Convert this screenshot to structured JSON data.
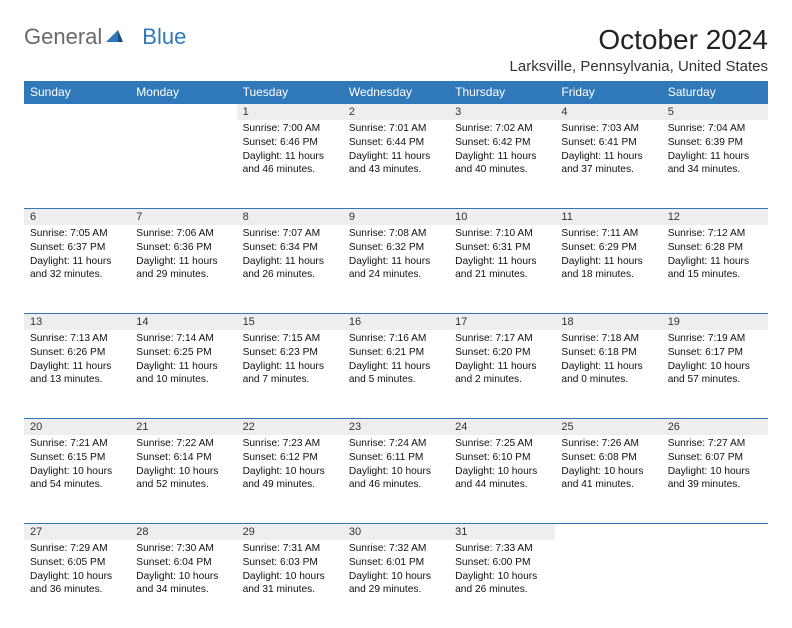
{
  "logo": {
    "general": "General",
    "blue": "Blue"
  },
  "title": "October 2024",
  "location": "Larksville, Pennsylvania, United States",
  "colors": {
    "header_bg": "#2f78b9",
    "header_fg": "#ffffff",
    "daynum_bg": "#eeeeee",
    "rule": "#2f78b9",
    "page_bg": "#ffffff",
    "text": "#111111"
  },
  "font": {
    "family": "Arial",
    "title_size_pt": 21,
    "location_size_pt": 11,
    "header_size_pt": 9,
    "body_size_pt": 7.5
  },
  "days_of_week": [
    "Sunday",
    "Monday",
    "Tuesday",
    "Wednesday",
    "Thursday",
    "Friday",
    "Saturday"
  ],
  "weeks": [
    [
      null,
      null,
      {
        "n": "1",
        "sr": "7:00 AM",
        "ss": "6:46 PM",
        "dh": "11",
        "dm": "46"
      },
      {
        "n": "2",
        "sr": "7:01 AM",
        "ss": "6:44 PM",
        "dh": "11",
        "dm": "43"
      },
      {
        "n": "3",
        "sr": "7:02 AM",
        "ss": "6:42 PM",
        "dh": "11",
        "dm": "40"
      },
      {
        "n": "4",
        "sr": "7:03 AM",
        "ss": "6:41 PM",
        "dh": "11",
        "dm": "37"
      },
      {
        "n": "5",
        "sr": "7:04 AM",
        "ss": "6:39 PM",
        "dh": "11",
        "dm": "34"
      }
    ],
    [
      {
        "n": "6",
        "sr": "7:05 AM",
        "ss": "6:37 PM",
        "dh": "11",
        "dm": "32"
      },
      {
        "n": "7",
        "sr": "7:06 AM",
        "ss": "6:36 PM",
        "dh": "11",
        "dm": "29"
      },
      {
        "n": "8",
        "sr": "7:07 AM",
        "ss": "6:34 PM",
        "dh": "11",
        "dm": "26"
      },
      {
        "n": "9",
        "sr": "7:08 AM",
        "ss": "6:32 PM",
        "dh": "11",
        "dm": "24"
      },
      {
        "n": "10",
        "sr": "7:10 AM",
        "ss": "6:31 PM",
        "dh": "11",
        "dm": "21"
      },
      {
        "n": "11",
        "sr": "7:11 AM",
        "ss": "6:29 PM",
        "dh": "11",
        "dm": "18"
      },
      {
        "n": "12",
        "sr": "7:12 AM",
        "ss": "6:28 PM",
        "dh": "11",
        "dm": "15"
      }
    ],
    [
      {
        "n": "13",
        "sr": "7:13 AM",
        "ss": "6:26 PM",
        "dh": "11",
        "dm": "13"
      },
      {
        "n": "14",
        "sr": "7:14 AM",
        "ss": "6:25 PM",
        "dh": "11",
        "dm": "10"
      },
      {
        "n": "15",
        "sr": "7:15 AM",
        "ss": "6:23 PM",
        "dh": "11",
        "dm": "7"
      },
      {
        "n": "16",
        "sr": "7:16 AM",
        "ss": "6:21 PM",
        "dh": "11",
        "dm": "5"
      },
      {
        "n": "17",
        "sr": "7:17 AM",
        "ss": "6:20 PM",
        "dh": "11",
        "dm": "2"
      },
      {
        "n": "18",
        "sr": "7:18 AM",
        "ss": "6:18 PM",
        "dh": "11",
        "dm": "0"
      },
      {
        "n": "19",
        "sr": "7:19 AM",
        "ss": "6:17 PM",
        "dh": "10",
        "dm": "57"
      }
    ],
    [
      {
        "n": "20",
        "sr": "7:21 AM",
        "ss": "6:15 PM",
        "dh": "10",
        "dm": "54"
      },
      {
        "n": "21",
        "sr": "7:22 AM",
        "ss": "6:14 PM",
        "dh": "10",
        "dm": "52"
      },
      {
        "n": "22",
        "sr": "7:23 AM",
        "ss": "6:12 PM",
        "dh": "10",
        "dm": "49"
      },
      {
        "n": "23",
        "sr": "7:24 AM",
        "ss": "6:11 PM",
        "dh": "10",
        "dm": "46"
      },
      {
        "n": "24",
        "sr": "7:25 AM",
        "ss": "6:10 PM",
        "dh": "10",
        "dm": "44"
      },
      {
        "n": "25",
        "sr": "7:26 AM",
        "ss": "6:08 PM",
        "dh": "10",
        "dm": "41"
      },
      {
        "n": "26",
        "sr": "7:27 AM",
        "ss": "6:07 PM",
        "dh": "10",
        "dm": "39"
      }
    ],
    [
      {
        "n": "27",
        "sr": "7:29 AM",
        "ss": "6:05 PM",
        "dh": "10",
        "dm": "36"
      },
      {
        "n": "28",
        "sr": "7:30 AM",
        "ss": "6:04 PM",
        "dh": "10",
        "dm": "34"
      },
      {
        "n": "29",
        "sr": "7:31 AM",
        "ss": "6:03 PM",
        "dh": "10",
        "dm": "31"
      },
      {
        "n": "30",
        "sr": "7:32 AM",
        "ss": "6:01 PM",
        "dh": "10",
        "dm": "29"
      },
      {
        "n": "31",
        "sr": "7:33 AM",
        "ss": "6:00 PM",
        "dh": "10",
        "dm": "26"
      },
      null,
      null
    ]
  ],
  "labels": {
    "sunrise": "Sunrise:",
    "sunset": "Sunset:",
    "daylight_prefix": "Daylight:",
    "hours_word": "hours",
    "and_word": "and",
    "minutes_word": "minutes."
  }
}
